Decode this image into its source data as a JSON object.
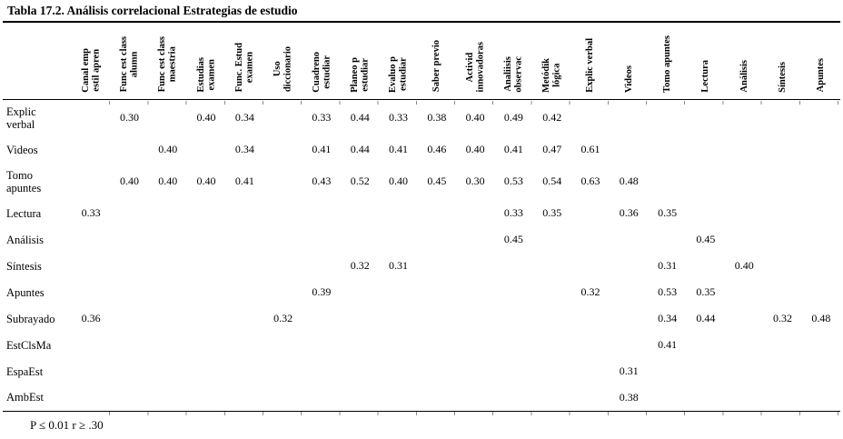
{
  "title": "Tabla  17.2. Análisis correlacional Estrategias de estudio",
  "table": {
    "columns": [
      "Canal emp\nestil apren",
      "Func est class\nalumn",
      "Func est class\nmaestria",
      "Estudias\nexamen",
      "Func. Estud\nexamen",
      "Uso\ndiccionario",
      "Cuadreno\nestudiar",
      "Planeo p\nestudiar",
      "Evaluo p\nestudiar",
      "Saber previo",
      "Activid\ninnovadoras",
      "Analiisis\nobservac",
      "Metódik\nlógica",
      "Explic verbal",
      "Videos",
      "Tomo apuntes",
      "Lectura",
      "Análisis",
      "Síntesis",
      "Apuntes"
    ],
    "rows": [
      {
        "label": "Explic\nverbal",
        "values": [
          "",
          "0.30",
          "",
          "0.40",
          "0.34",
          "",
          "0.33",
          "0.44",
          "0.33",
          "0.38",
          "0.40",
          "0.49",
          "0.42",
          "",
          "",
          "",
          "",
          "",
          "",
          ""
        ]
      },
      {
        "label": "Videos",
        "values": [
          "",
          "",
          "0.40",
          "",
          "0.34",
          "",
          "0.41",
          "0.44",
          "0.41",
          "0.46",
          "0.40",
          "0.41",
          "0.47",
          "0.61",
          "",
          "",
          "",
          "",
          "",
          ""
        ]
      },
      {
        "label": "Tomo\napuntes",
        "values": [
          "",
          "0.40",
          "0.40",
          "0.40",
          "0.41",
          "",
          "0.43",
          "0.52",
          "0.40",
          "0.45",
          "0.30",
          "0.53",
          "0.54",
          "0.63",
          "0.48",
          "",
          "",
          "",
          "",
          ""
        ]
      },
      {
        "label": "Lectura",
        "values": [
          "0.33",
          "",
          "",
          "",
          "",
          "",
          "",
          "",
          "",
          "",
          "",
          "0.33",
          "0.35",
          "",
          "0.36",
          "0.35",
          "",
          "",
          "",
          ""
        ]
      },
      {
        "label": "Análisis",
        "values": [
          "",
          "",
          "",
          "",
          "",
          "",
          "",
          "",
          "",
          "",
          "",
          "0.45",
          "",
          "",
          "",
          "",
          "0.45",
          "",
          "",
          ""
        ]
      },
      {
        "label": "Síntesis",
        "values": [
          "",
          "",
          "",
          "",
          "",
          "",
          "",
          "0.32",
          "0.31",
          "",
          "",
          "",
          "",
          "",
          "",
          "0.31",
          "",
          "0.40",
          "",
          ""
        ]
      },
      {
        "label": "Apuntes",
        "values": [
          "",
          "",
          "",
          "",
          "",
          "",
          "0.39",
          "",
          "",
          "",
          "",
          "",
          "",
          "0.32",
          "",
          "0.53",
          "0.35",
          "",
          "",
          ""
        ]
      },
      {
        "label": "Subrayado",
        "values": [
          "0.36",
          "",
          "",
          "",
          "",
          "0.32",
          "",
          "",
          "",
          "",
          "",
          "",
          "",
          "",
          "",
          "0.34",
          "0.44",
          "",
          "0.32",
          "0.48"
        ]
      },
      {
        "label": "EstClsMa",
        "values": [
          "",
          "",
          "",
          "",
          "",
          "",
          "",
          "",
          "",
          "",
          "",
          "",
          "",
          "",
          "",
          "0.41",
          "",
          "",
          "",
          ""
        ]
      },
      {
        "label": "EspaEst",
        "values": [
          "",
          "",
          "",
          "",
          "",
          "",
          "",
          "",
          "",
          "",
          "",
          "",
          "",
          "",
          "0.31",
          "",
          "",
          "",
          "",
          ""
        ]
      },
      {
        "label": "AmbEst",
        "values": [
          "",
          "",
          "",
          "",
          "",
          "",
          "",
          "",
          "",
          "",
          "",
          "",
          "",
          "",
          "0.38",
          "",
          "",
          "",
          "",
          ""
        ]
      }
    ],
    "footnote": "P ≤ 0.01 r ≥ .30"
  }
}
